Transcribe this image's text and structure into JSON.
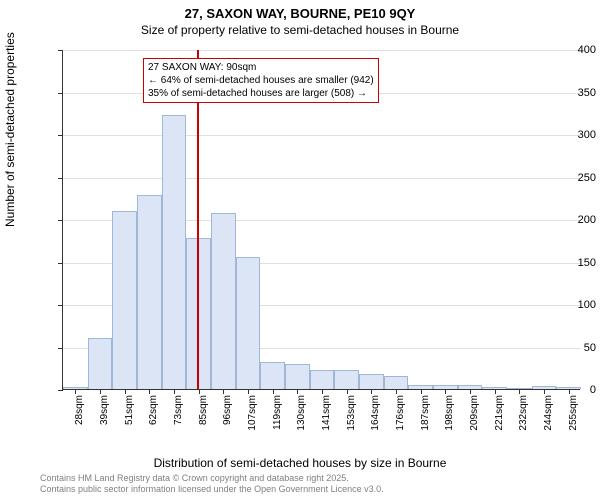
{
  "chart": {
    "type": "histogram",
    "title_line1": "27, SAXON WAY, BOURNE, PE10 9QY",
    "title_line2": "Size of property relative to semi-detached houses in Bourne",
    "ylabel": "Number of semi-detached properties",
    "xlabel": "Distribution of semi-detached houses by size in Bourne",
    "ylim": [
      0,
      400
    ],
    "ytick_step": 50,
    "background_color": "#ffffff",
    "grid_color": "#e0e0e0",
    "axis_color": "#333333",
    "bar_fill": "#dbe5f5",
    "bar_stroke": "#a0b8d8",
    "categories": [
      "28sqm",
      "39sqm",
      "51sqm",
      "62sqm",
      "73sqm",
      "85sqm",
      "96sqm",
      "107sqm",
      "119sqm",
      "130sqm",
      "141sqm",
      "153sqm",
      "164sqm",
      "176sqm",
      "187sqm",
      "198sqm",
      "209sqm",
      "221sqm",
      "232sqm",
      "244sqm",
      "255sqm"
    ],
    "values": [
      2,
      60,
      210,
      228,
      322,
      178,
      207,
      155,
      32,
      30,
      22,
      22,
      18,
      15,
      5,
      5,
      5,
      2,
      0,
      4,
      2
    ],
    "reference_line": {
      "x_category_index": 5.45,
      "color": "#cc0000",
      "width": 2
    },
    "annotation": {
      "line1": "27 SAXON WAY: 90sqm",
      "line2": "← 64% of semi-detached houses are smaller (942)",
      "line3": "35% of semi-detached houses are larger (508) →",
      "border_color": "#cc0000",
      "text_color": "#000000",
      "background": "#ffffff",
      "fontsize": 10
    },
    "footer": {
      "line1": "Contains HM Land Registry data © Crown copyright and database right 2025.",
      "line2": "Contains public sector information licensed under the Open Government Licence v3.0.",
      "color": "#808080",
      "fontsize": 9
    }
  }
}
